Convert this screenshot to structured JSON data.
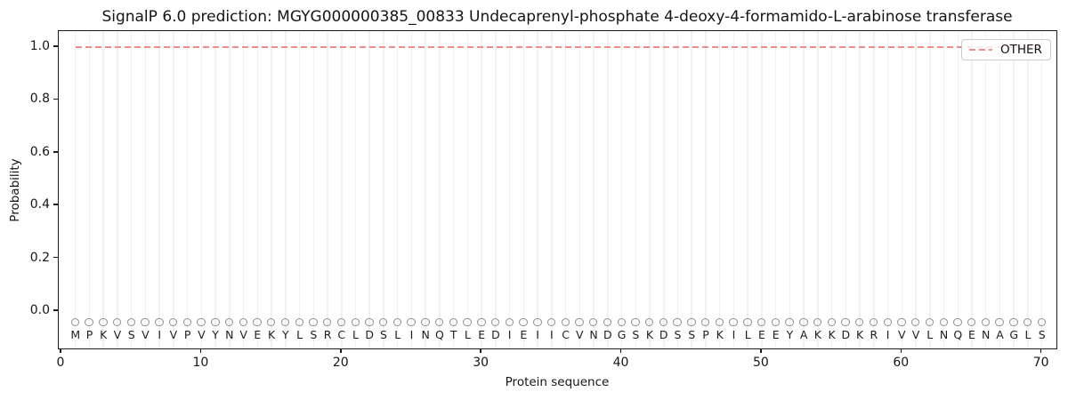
{
  "figure": {
    "kind": "matplotlib-style line plot screenshot",
    "background": "#ffffff"
  },
  "chart_data": {
    "type": "line",
    "title": "SignalP 6.0 prediction: MGYG000000385_00833 Undecaprenyl-phosphate 4-deoxy-4-formamido-L-arabinose transferase",
    "xlabel": "Protein sequence",
    "ylabel": "Probability",
    "xlim": [
      -0.2,
      71.2
    ],
    "ylim": [
      -0.145,
      1.07
    ],
    "x_ticks": [
      0,
      10,
      20,
      30,
      40,
      50,
      60,
      70
    ],
    "y_ticks": [
      0.0,
      0.2,
      0.4,
      0.6,
      0.8,
      1.0
    ],
    "grid": "faint vertical gridline at every residue position 1-70",
    "legend": {
      "position": "upper right",
      "entries": [
        "OTHER"
      ]
    },
    "series": [
      {
        "name": "OTHER",
        "linestyle": "dashed",
        "color": "#ee8b8b",
        "x_range": [
          1,
          70
        ],
        "values": [
          1.0,
          1.0,
          1.0,
          1.0,
          1.0,
          1.0,
          1.0,
          1.0,
          1.0,
          1.0,
          1.0,
          1.0,
          1.0,
          1.0,
          1.0,
          1.0,
          1.0,
          1.0,
          1.0,
          1.0,
          1.0,
          1.0,
          1.0,
          1.0,
          1.0,
          1.0,
          1.0,
          1.0,
          1.0,
          1.0,
          1.0,
          1.0,
          1.0,
          1.0,
          1.0,
          1.0,
          1.0,
          1.0,
          1.0,
          1.0,
          1.0,
          1.0,
          1.0,
          1.0,
          1.0,
          1.0,
          1.0,
          1.0,
          1.0,
          1.0,
          1.0,
          1.0,
          1.0,
          1.0,
          1.0,
          1.0,
          1.0,
          1.0,
          1.0,
          1.0,
          1.0,
          1.0,
          1.0,
          1.0,
          1.0,
          1.0,
          1.0,
          1.0,
          1.0,
          1.0
        ]
      }
    ],
    "sequence": "MPKVSVIVPVYNVEKYLSRCLDSLINQTLEDIEIICVNDGSKDSSPKILEEYAKKDKRIVVLNQENAGLS",
    "sequence_markers": {
      "shape": "open-circle",
      "color": "#8f8f8f",
      "y": -0.045
    }
  },
  "colors": {
    "other_line": "#ee8b8b",
    "gridline": "#f1f1f1",
    "frame": "#1c1c1c",
    "marker_edge": "#8f8f8f",
    "text": "#151515"
  }
}
